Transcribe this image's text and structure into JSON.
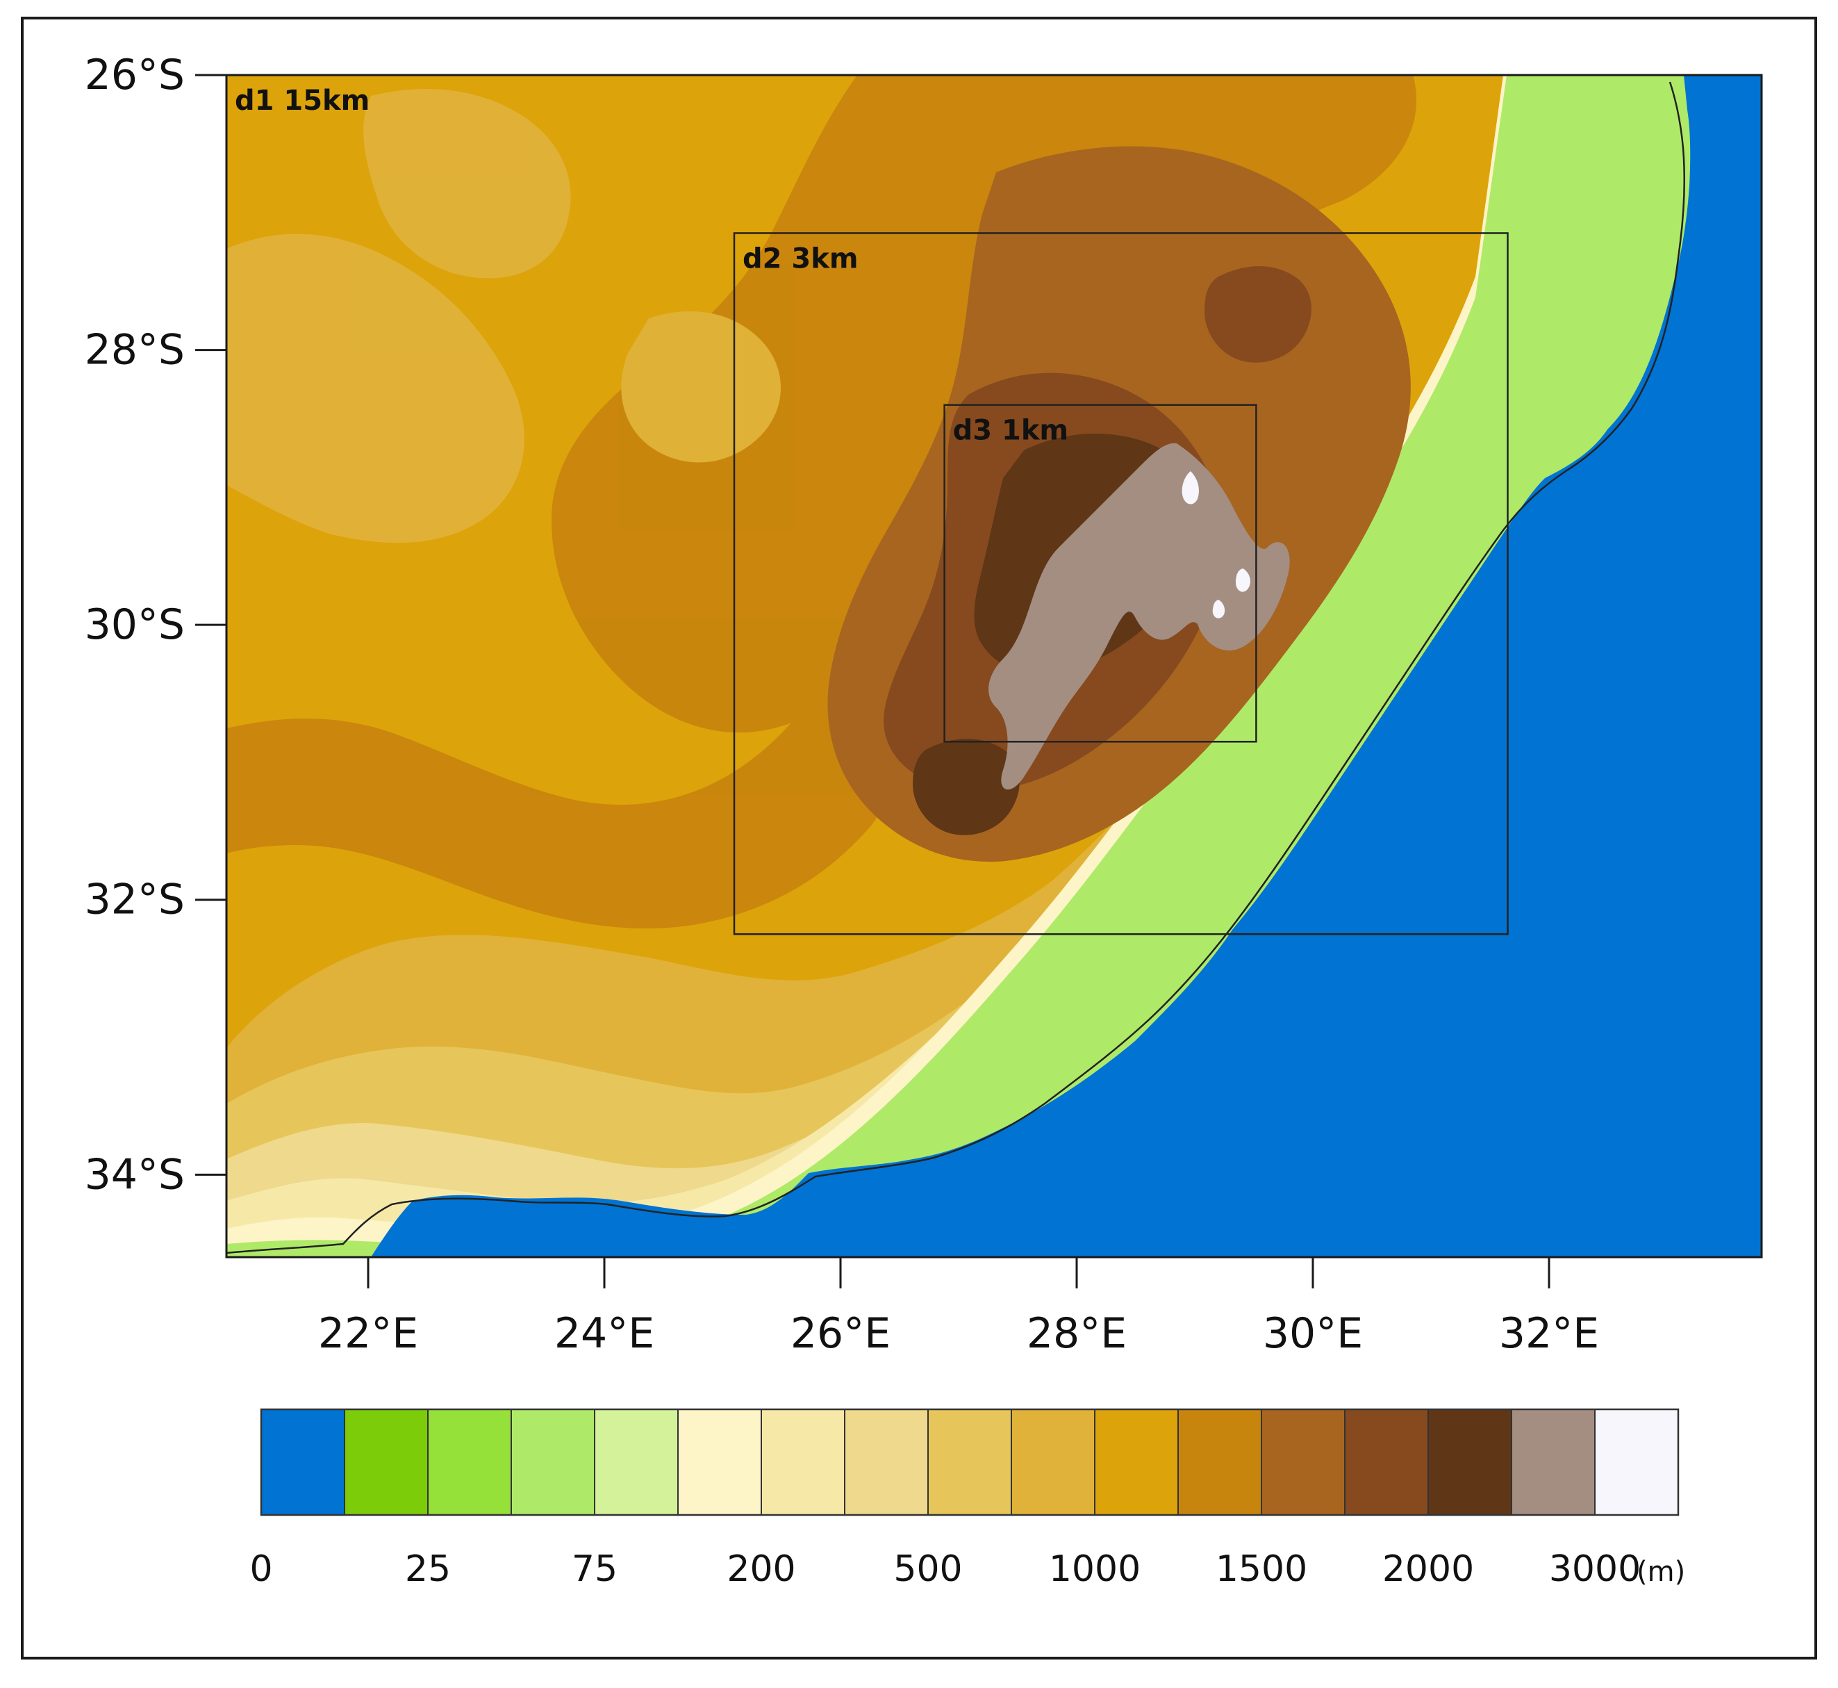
{
  "map": {
    "lat_ticks": [
      "26°S",
      "28°S",
      "30°S",
      "32°S",
      "34°S"
    ],
    "lon_ticks": [
      "22°E",
      "24°E",
      "26°E",
      "28°E",
      "30°E",
      "32°E"
    ],
    "extent": {
      "lon_min": 20.8,
      "lon_max": 33.8,
      "lat_top": -26.0,
      "lat_bottom": -34.6
    },
    "domains": [
      {
        "label": "d1 15km",
        "lon_min": 20.8,
        "lon_max": 33.8,
        "lat_top": -26.0,
        "lat_bottom": -34.6
      },
      {
        "label": "d2 3km",
        "lon_min": 25.1,
        "lon_max": 31.65,
        "lat_top": -27.15,
        "lat_bottom": -32.25
      },
      {
        "label": "d3 1km",
        "lon_min": 26.88,
        "lon_max": 29.52,
        "lat_top": -28.4,
        "lat_bottom": -30.85
      }
    ],
    "ocean_color": "#0073d3",
    "terrain_variable": "elevation"
  },
  "colorbar": {
    "labels": [
      "0",
      "25",
      "75",
      "200",
      "500",
      "1000",
      "1500",
      "2000",
      "3000"
    ],
    "unit": "(m)",
    "colors": [
      "#0073d3",
      "#7ccc0a",
      "#96e03a",
      "#aeea68",
      "#d4f29a",
      "#fdf4c8",
      "#f6e9a8",
      "#efd98c",
      "#e6c65a",
      "#e0b23a",
      "#dda30a",
      "#c8850e",
      "#a86520",
      "#864a1e",
      "#5f3616",
      "#a48e82",
      "#f6f6fc"
    ]
  }
}
